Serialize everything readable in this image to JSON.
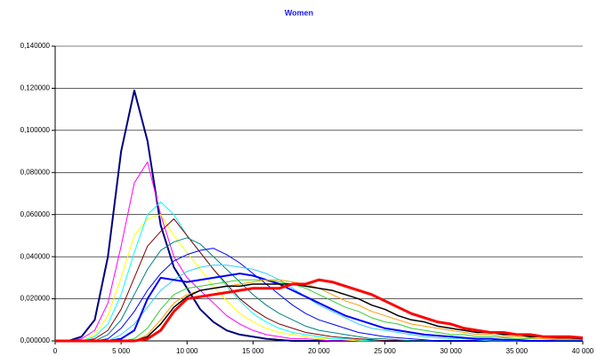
{
  "chart_data": {
    "type": "line",
    "title": "Women",
    "x": [
      0,
      1000,
      2000,
      3000,
      4000,
      5000,
      6000,
      7000,
      8000,
      9000,
      10000,
      11000,
      12000,
      13000,
      14000,
      15000,
      16000,
      17000,
      18000,
      19000,
      20000,
      21000,
      22000,
      23000,
      24000,
      25000,
      26000,
      27000,
      28000,
      29000,
      30000,
      31000,
      32000,
      33000,
      34000,
      35000,
      36000,
      37000,
      38000,
      39000,
      40000
    ],
    "xlim": [
      0,
      40000
    ],
    "xticks": [
      0,
      {
        "value": 5000,
        "label": "5 000"
      },
      {
        "value": 10000,
        "label": "10 000"
      },
      {
        "value": 15000,
        "label": "15 000"
      },
      {
        "value": 20000,
        "label": "20 000"
      },
      {
        "value": 25000,
        "label": "25 000"
      },
      {
        "value": 30000,
        "label": "30 000"
      },
      {
        "value": 35000,
        "label": "35 000"
      },
      {
        "value": 40000,
        "label": "40 000"
      }
    ],
    "ylim": [
      0,
      0.14
    ],
    "yticks": [
      {
        "value": 0,
        "label": "0,000000"
      },
      {
        "value": 0.02,
        "label": "0,020000"
      },
      {
        "value": 0.04,
        "label": "0,040000"
      },
      {
        "value": 0.06,
        "label": "0,060000"
      },
      {
        "value": 0.08,
        "label": "0,080000"
      },
      {
        "value": 0.1,
        "label": "0,100000"
      },
      {
        "value": 0.12,
        "label": "0,120000"
      },
      {
        "value": 0.14,
        "label": "0,140000"
      }
    ],
    "grid": true,
    "series": [
      {
        "color": "#00007f",
        "width": 2,
        "values": [
          0,
          0,
          0.002,
          0.01,
          0.04,
          0.09,
          0.119,
          0.095,
          0.055,
          0.035,
          0.025,
          0.015,
          0.009,
          0.005,
          0.003,
          0.002,
          0.001,
          0.0005,
          0,
          0,
          0,
          0,
          0,
          0,
          0,
          0,
          0,
          0,
          0,
          0,
          0,
          0,
          0,
          0,
          0,
          0,
          0,
          0,
          0,
          0,
          0
        ]
      },
      {
        "color": "#ff00ff",
        "width": 1,
        "values": [
          0,
          0,
          0.001,
          0.005,
          0.018,
          0.045,
          0.075,
          0.085,
          0.06,
          0.04,
          0.03,
          0.024,
          0.018,
          0.012,
          0.008,
          0.005,
          0.003,
          0.002,
          0.001,
          0.001,
          0.0005,
          0,
          0,
          0,
          0,
          0,
          0,
          0,
          0,
          0,
          0,
          0,
          0,
          0,
          0,
          0,
          0,
          0,
          0,
          0,
          0
        ]
      },
      {
        "color": "#ffff00",
        "width": 1,
        "values": [
          0,
          0,
          0,
          0.003,
          0.012,
          0.03,
          0.05,
          0.058,
          0.06,
          0.05,
          0.042,
          0.034,
          0.026,
          0.019,
          0.013,
          0.009,
          0.006,
          0.004,
          0.003,
          0.002,
          0.001,
          0.001,
          0.0005,
          0,
          0,
          0,
          0,
          0,
          0,
          0,
          0,
          0,
          0,
          0,
          0,
          0,
          0,
          0,
          0,
          0,
          0
        ]
      },
      {
        "color": "#00ffff",
        "width": 1,
        "values": [
          0,
          0,
          0,
          0.002,
          0.008,
          0.022,
          0.042,
          0.06,
          0.066,
          0.06,
          0.05,
          0.042,
          0.034,
          0.026,
          0.019,
          0.013,
          0.009,
          0.006,
          0.004,
          0.003,
          0.002,
          0.001,
          0.001,
          0.0005,
          0,
          0,
          0,
          0,
          0,
          0,
          0,
          0,
          0,
          0,
          0,
          0,
          0,
          0,
          0,
          0,
          0
        ]
      },
      {
        "color": "#800000",
        "width": 1,
        "values": [
          0,
          0,
          0,
          0.001,
          0.005,
          0.015,
          0.03,
          0.045,
          0.052,
          0.058,
          0.05,
          0.042,
          0.034,
          0.027,
          0.02,
          0.015,
          0.011,
          0.008,
          0.006,
          0.004,
          0.003,
          0.002,
          0.0015,
          0.001,
          0.0005,
          0,
          0,
          0,
          0,
          0,
          0,
          0,
          0,
          0,
          0,
          0,
          0,
          0,
          0,
          0,
          0
        ]
      },
      {
        "color": "#008080",
        "width": 1,
        "values": [
          0,
          0,
          0,
          0,
          0.003,
          0.01,
          0.022,
          0.034,
          0.043,
          0.047,
          0.049,
          0.046,
          0.04,
          0.034,
          0.028,
          0.022,
          0.017,
          0.013,
          0.01,
          0.007,
          0.005,
          0.004,
          0.003,
          0.002,
          0.001,
          0.001,
          0.0005,
          0,
          0,
          0,
          0,
          0,
          0,
          0,
          0,
          0,
          0,
          0,
          0,
          0,
          0
        ]
      },
      {
        "color": "#0000ff",
        "width": 1,
        "values": [
          0,
          0,
          0,
          0,
          0.001,
          0.006,
          0.014,
          0.024,
          0.032,
          0.038,
          0.041,
          0.043,
          0.044,
          0.041,
          0.037,
          0.032,
          0.027,
          0.022,
          0.017,
          0.013,
          0.01,
          0.008,
          0.006,
          0.004,
          0.003,
          0.002,
          0.0015,
          0.001,
          0.0005,
          0,
          0,
          0,
          0,
          0,
          0,
          0,
          0,
          0,
          0,
          0,
          0
        ]
      },
      {
        "color": "#33ccff",
        "width": 1,
        "values": [
          0,
          0,
          0,
          0,
          0,
          0.003,
          0.008,
          0.016,
          0.024,
          0.029,
          0.033,
          0.035,
          0.036,
          0.036,
          0.035,
          0.034,
          0.032,
          0.029,
          0.025,
          0.021,
          0.017,
          0.014,
          0.011,
          0.008,
          0.006,
          0.005,
          0.004,
          0.003,
          0.002,
          0.0015,
          0.001,
          0.001,
          0.0005,
          0,
          0,
          0,
          0,
          0,
          0,
          0,
          0
        ]
      },
      {
        "color": "#0000ff",
        "width": 2,
        "values": [
          0,
          0,
          0,
          0,
          0,
          0.001,
          0.005,
          0.02,
          0.03,
          0.029,
          0.028,
          0.029,
          0.03,
          0.031,
          0.032,
          0.031,
          0.029,
          0.027,
          0.024,
          0.021,
          0.018,
          0.015,
          0.012,
          0.01,
          0.008,
          0.006,
          0.005,
          0.004,
          0.003,
          0.0025,
          0.002,
          0.0015,
          0.001,
          0.001,
          0.0005,
          0.0005,
          0,
          0,
          0,
          0,
          0
        ]
      },
      {
        "color": "#33cc33",
        "width": 1,
        "values": [
          0,
          0,
          0,
          0,
          0,
          0,
          0.001,
          0.006,
          0.015,
          0.022,
          0.025,
          0.026,
          0.027,
          0.028,
          0.029,
          0.029,
          0.029,
          0.028,
          0.027,
          0.025,
          0.022,
          0.019,
          0.016,
          0.014,
          0.011,
          0.009,
          0.008,
          0.006,
          0.005,
          0.004,
          0.003,
          0.003,
          0.002,
          0.002,
          0.0015,
          0.001,
          0.001,
          0.001,
          0.0005,
          0.0005,
          0.0005
        ]
      },
      {
        "color": "#ff9900",
        "width": 1,
        "values": [
          0,
          0,
          0,
          0,
          0,
          0,
          0,
          0.003,
          0.01,
          0.018,
          0.022,
          0.024,
          0.025,
          0.026,
          0.027,
          0.028,
          0.029,
          0.029,
          0.028,
          0.027,
          0.025,
          0.022,
          0.019,
          0.017,
          0.014,
          0.012,
          0.01,
          0.008,
          0.007,
          0.006,
          0.005,
          0.004,
          0.003,
          0.003,
          0.002,
          0.002,
          0.0015,
          0.001,
          0.001,
          0.001,
          0.0008
        ]
      },
      {
        "color": "#000000",
        "width": 1.5,
        "values": [
          0,
          0,
          0,
          0,
          0,
          0,
          0,
          0.002,
          0.008,
          0.016,
          0.021,
          0.024,
          0.025,
          0.026,
          0.026,
          0.027,
          0.027,
          0.027,
          0.027,
          0.026,
          0.025,
          0.024,
          0.022,
          0.02,
          0.017,
          0.015,
          0.012,
          0.01,
          0.009,
          0.007,
          0.006,
          0.005,
          0.004,
          0.004,
          0.003,
          0.003,
          0.002,
          0.002,
          0.0015,
          0.0015,
          0.001
        ]
      },
      {
        "color": "#ff0000",
        "width": 3,
        "values": [
          0,
          0,
          0,
          0,
          0,
          0,
          0,
          0.001,
          0.005,
          0.014,
          0.02,
          0.021,
          0.022,
          0.023,
          0.024,
          0.025,
          0.025,
          0.025,
          0.027,
          0.027,
          0.029,
          0.028,
          0.026,
          0.024,
          0.022,
          0.019,
          0.016,
          0.013,
          0.011,
          0.009,
          0.008,
          0.006,
          0.005,
          0.004,
          0.004,
          0.003,
          0.003,
          0.002,
          0.002,
          0.002,
          0.0015
        ]
      }
    ]
  }
}
